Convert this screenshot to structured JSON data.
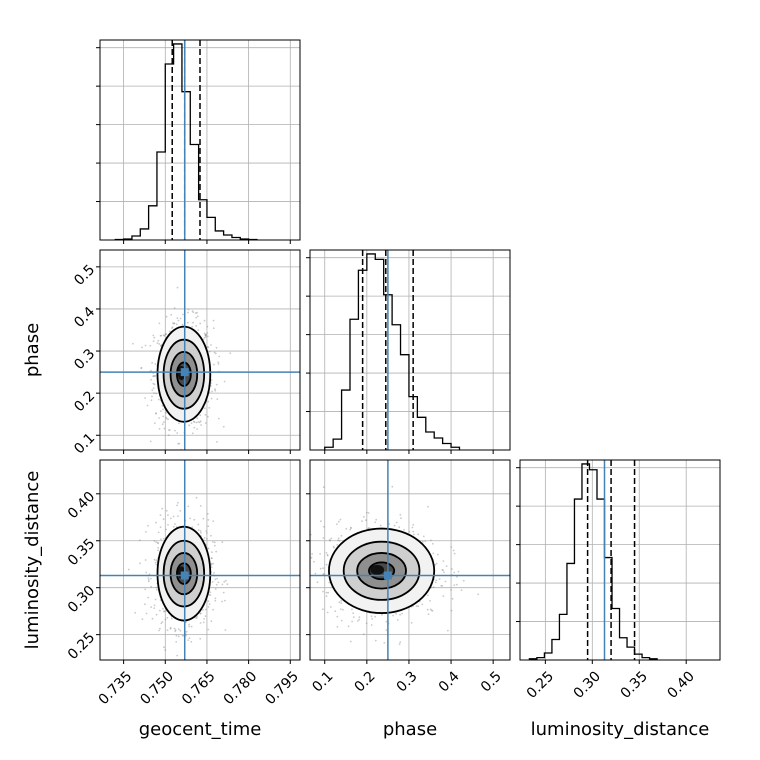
{
  "chart_data": {
    "type": "corner",
    "parameters": [
      "geocent_time",
      "phase",
      "luminosity_distance"
    ],
    "truths": [
      0.757,
      0.25,
      0.313
    ],
    "quantiles": [
      [
        0.7525,
        0.757,
        0.7625
      ],
      [
        0.19,
        0.245,
        0.31
      ],
      [
        0.295,
        0.32,
        0.345
      ]
    ],
    "ranges": [
      [
        0.7265,
        0.7985
      ],
      [
        0.065,
        0.54
      ],
      [
        0.223,
        0.436
      ]
    ],
    "ticks": [
      [
        "0.735",
        "0.750",
        "0.765",
        "0.780",
        "0.795"
      ],
      [
        "0.1",
        "0.2",
        "0.3",
        "0.4",
        "0.5"
      ],
      [
        "0.25",
        "0.30",
        "0.35",
        "0.40"
      ]
    ],
    "tick_values": [
      [
        0.735,
        0.75,
        0.765,
        0.78,
        0.795
      ],
      [
        0.1,
        0.2,
        0.3,
        0.4,
        0.5
      ],
      [
        0.25,
        0.3,
        0.35,
        0.4
      ]
    ],
    "histograms": [
      {
        "edges_start": 0.732,
        "bin_width": 0.003,
        "counts": [
          1,
          2,
          8,
          22,
          68,
          175,
          350,
          390,
          295,
          190,
          80,
          45,
          18,
          10,
          5,
          2,
          1
        ]
      },
      {
        "edges_start": 0.1,
        "bin_width": 0.02,
        "counts": [
          5,
          20,
          110,
          240,
          330,
          360,
          350,
          285,
          230,
          175,
          98,
          60,
          33,
          22,
          12,
          5
        ]
      },
      {
        "edges_start": 0.233,
        "bin_width": 0.008,
        "counts": [
          2,
          4,
          12,
          35,
          78,
          165,
          275,
          335,
          325,
          275,
          175,
          88,
          38,
          22,
          10,
          4,
          2
        ]
      }
    ],
    "contours": [
      {
        "x": 0,
        "y": 1,
        "center": [
          0.7567,
          0.245
        ],
        "radii": [
          [
            0.0025,
            0.028
          ],
          [
            0.0048,
            0.053
          ],
          [
            0.0073,
            0.082
          ],
          [
            0.0095,
            0.113
          ]
        ]
      },
      {
        "x": 0,
        "y": 2,
        "center": [
          0.7567,
          0.315
        ],
        "radii": [
          [
            0.0025,
            0.011
          ],
          [
            0.0048,
            0.022
          ],
          [
            0.0073,
            0.035
          ],
          [
            0.0095,
            0.05
          ]
        ]
      },
      {
        "x": 1,
        "y": 2,
        "center": [
          0.235,
          0.318
        ],
        "radii": [
          [
            0.03,
            0.009
          ],
          [
            0.058,
            0.019
          ],
          [
            0.09,
            0.031
          ],
          [
            0.125,
            0.045
          ]
        ]
      }
    ],
    "grid": true,
    "truth_color": "#4682b4",
    "line_color": "#000000"
  }
}
